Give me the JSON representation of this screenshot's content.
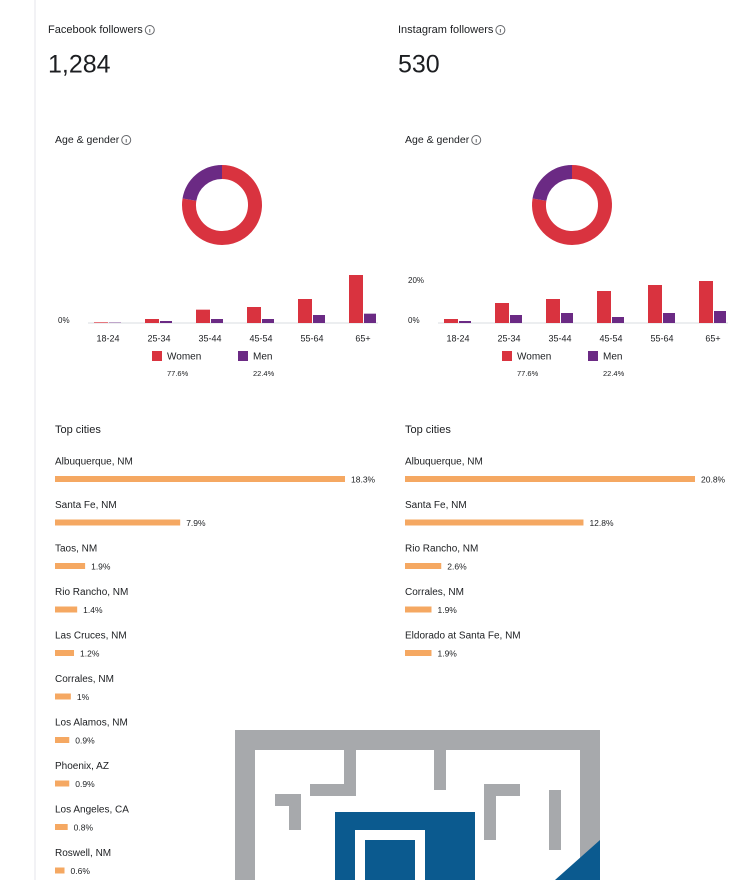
{
  "panels": [
    {
      "title": "Facebook followers",
      "count": "1,284",
      "age_gender": {
        "title": "Age & gender",
        "type": "bar",
        "categories": [
          "18-24",
          "25-34",
          "35-44",
          "45-54",
          "55-64",
          "65+"
        ],
        "ylim": [
          0,
          45
        ],
        "yticks": [
          {
            "value": 0,
            "label": "0%"
          }
        ],
        "series": [
          {
            "name": "Women",
            "color": "#d9333f",
            "values": [
              0.5,
              3,
              10,
              12,
              18,
              36
            ],
            "share": 77.6,
            "share_label": "77.6%"
          },
          {
            "name": "Men",
            "color": "#6b2a84",
            "values": [
              0.3,
              1.5,
              3,
              3,
              6,
              7
            ],
            "share": 22.4,
            "share_label": "22.4%"
          }
        ]
      },
      "top_cities": {
        "title": "Top cities",
        "color": "#f5a862",
        "cities": [
          "Albuquerque, NM",
          "Santa Fe, NM",
          "Taos, NM",
          "Rio Rancho, NM",
          "Las Cruces, NM",
          "Corrales, NM",
          "Los Alamos, NM",
          "Phoenix, AZ",
          "Los Angeles, CA",
          "Roswell, NM"
        ],
        "values": [
          18.3,
          7.9,
          1.9,
          1.4,
          1.2,
          1,
          0.9,
          0.9,
          0.8,
          0.6
        ],
        "value_labels": [
          "18.3%",
          "7.9%",
          "1.9%",
          "1.4%",
          "1.2%",
          "1%",
          "0.9%",
          "0.9%",
          "0.8%",
          "0.6%"
        ]
      }
    },
    {
      "title": "Instagram followers",
      "count": "530",
      "age_gender": {
        "title": "Age & gender",
        "type": "bar",
        "categories": [
          "18-24",
          "25-34",
          "35-44",
          "45-54",
          "55-64",
          "65+"
        ],
        "ylim": [
          0,
          30
        ],
        "yticks": [
          {
            "value": 0,
            "label": "0%"
          },
          {
            "value": 20,
            "label": "20%"
          }
        ],
        "series": [
          {
            "name": "Women",
            "color": "#d9333f",
            "values": [
              2,
              10,
              12,
              16,
              19,
              21
            ],
            "share": 77.6,
            "share_label": "77.6%"
          },
          {
            "name": "Men",
            "color": "#6b2a84",
            "values": [
              1,
              4,
              5,
              3,
              5,
              6
            ],
            "share": 22.4,
            "share_label": "22.4%"
          }
        ]
      },
      "top_cities": {
        "title": "Top cities",
        "color": "#f5a862",
        "cities": [
          "Albuquerque, NM",
          "Santa Fe, NM",
          "Rio Rancho, NM",
          "Corrales, NM",
          "Eldorado at Santa Fe, NM"
        ],
        "values": [
          20.8,
          12.8,
          2.6,
          1.9,
          1.9
        ],
        "value_labels": [
          "20.8%",
          "12.8%",
          "2.6%",
          "1.9%",
          "1.9%"
        ]
      }
    }
  ]
}
